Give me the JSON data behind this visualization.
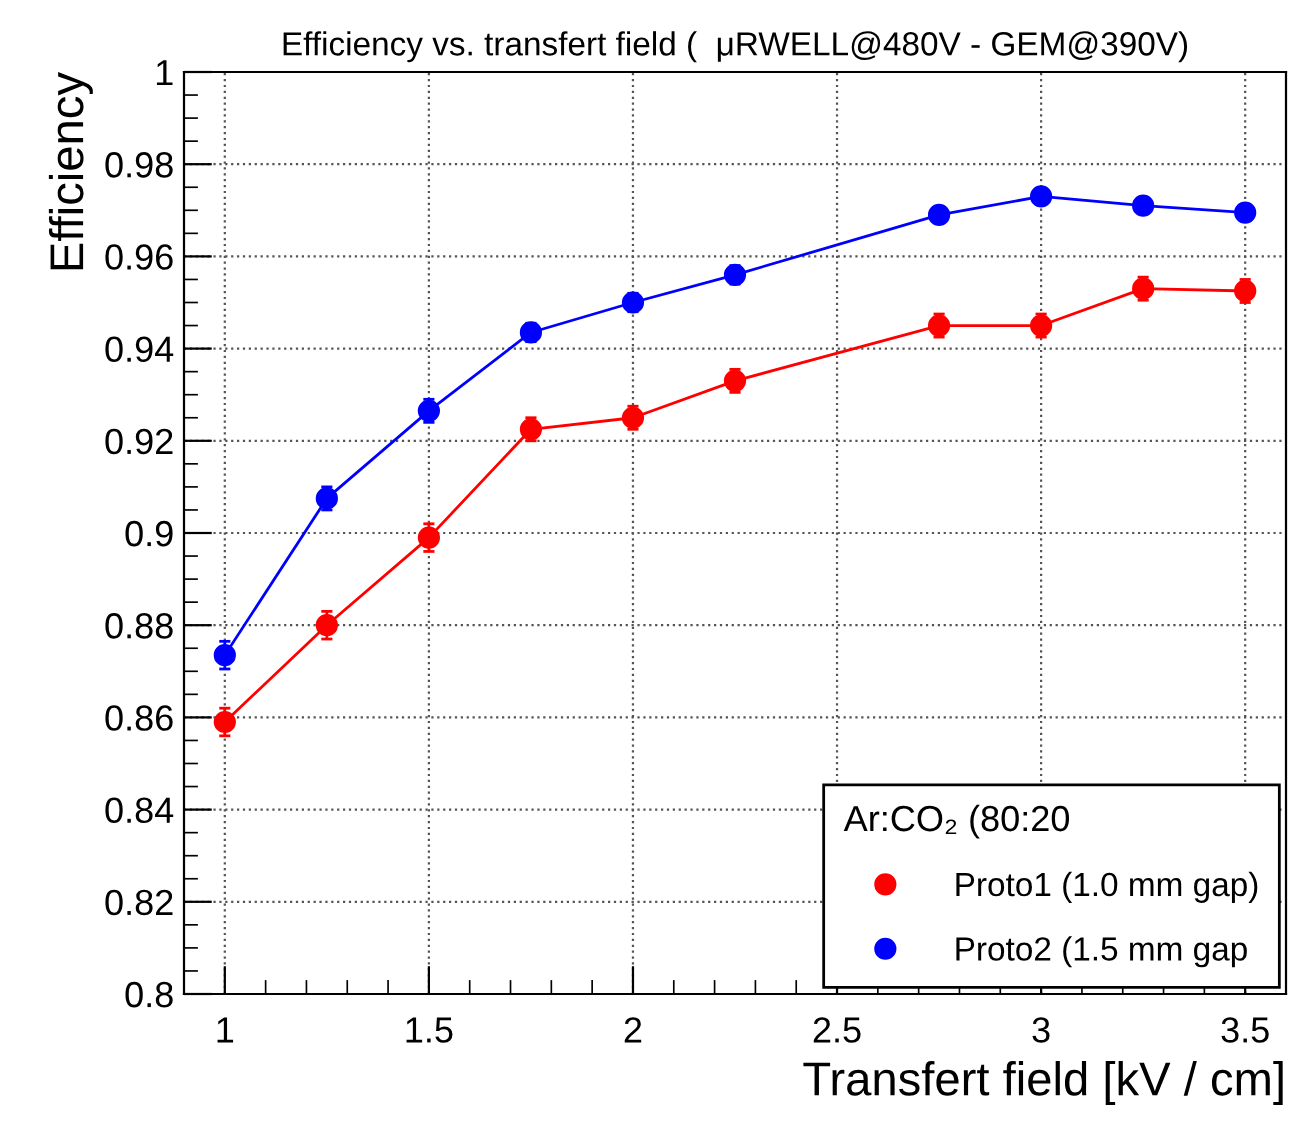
{
  "chart_data": {
    "type": "line",
    "title": "Efficiency vs. transfert field (  μRWELL@480V - GEM@390V)",
    "xlabel": "Transfert field [kV / cm]",
    "ylabel": "Efficiency",
    "legend_title": "Ar:CO₂ (80:20",
    "x": [
      1,
      1.25,
      1.5,
      1.75,
      2,
      2.25,
      2.75,
      3,
      3.25,
      3.5
    ],
    "series": [
      {
        "name": "Proto1 (1.0 mm gap)",
        "color": "#ff0000",
        "values": [
          0.859,
          0.88,
          0.899,
          0.9225,
          0.925,
          0.933,
          0.945,
          0.945,
          0.953,
          0.9525
        ],
        "errors": [
          0.003,
          0.003,
          0.003,
          0.0025,
          0.0025,
          0.0025,
          0.0025,
          0.0025,
          0.0025,
          0.0025
        ]
      },
      {
        "name": "Proto2 (1.5 mm gap",
        "color": "#0000ff",
        "values": [
          0.8735,
          0.9075,
          0.9265,
          0.9435,
          0.95,
          0.956,
          0.969,
          0.973,
          0.971,
          0.9695
        ],
        "errors": [
          0.003,
          0.0025,
          0.0025,
          0.002,
          0.002,
          0.002,
          0.0015,
          0.0015,
          0.0015,
          0.0015
        ]
      }
    ],
    "xlim": [
      0.9,
      3.6
    ],
    "ylim": [
      0.8,
      1
    ],
    "xticks": [
      1,
      1.5,
      2,
      2.5,
      3,
      3.5
    ],
    "yticks": [
      0.8,
      0.82,
      0.84,
      0.86,
      0.88,
      0.9,
      0.92,
      0.94,
      0.96,
      0.98,
      1
    ],
    "grid": true,
    "legend": "bottom right",
    "marker": "circle",
    "line_style": "solid"
  }
}
